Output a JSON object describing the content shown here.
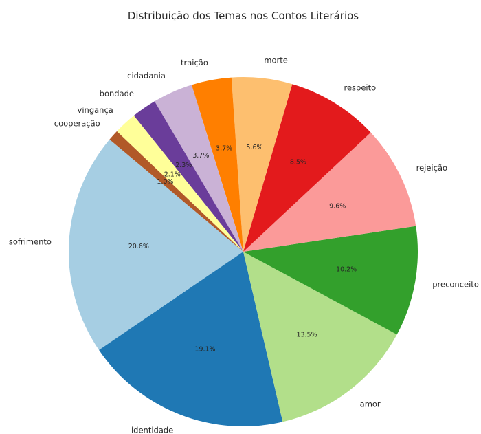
{
  "chart_data": {
    "type": "pie",
    "title": "Distribuição dos Temas nos Contos Literários",
    "slices": [
      {
        "label": "sofrimento",
        "value": 20.6,
        "pct_label": "20.6%",
        "color": "#a6cee3"
      },
      {
        "label": "identidade",
        "value": 19.1,
        "pct_label": "19.1%",
        "color": "#1f78b4"
      },
      {
        "label": "amor",
        "value": 13.5,
        "pct_label": "13.5%",
        "color": "#b2df8a"
      },
      {
        "label": "preconceito",
        "value": 10.2,
        "pct_label": "10.2%",
        "color": "#33a02c"
      },
      {
        "label": "rejeição",
        "value": 9.6,
        "pct_label": "9.6%",
        "color": "#fb9a99"
      },
      {
        "label": "respeito",
        "value": 8.5,
        "pct_label": "8.5%",
        "color": "#e31a1c"
      },
      {
        "label": "morte",
        "value": 5.6,
        "pct_label": "5.6%",
        "color": "#fdbf6f"
      },
      {
        "label": "traição",
        "value": 3.7,
        "pct_label": "3.7%",
        "color": "#ff7f00"
      },
      {
        "label": "cidadania",
        "value": 3.7,
        "pct_label": "3.7%",
        "color": "#cab2d6"
      },
      {
        "label": "bondade",
        "value": 2.3,
        "pct_label": "2.3%",
        "color": "#6a3d9a"
      },
      {
        "label": "vingança",
        "value": 2.1,
        "pct_label": "2.1%",
        "color": "#ffff99"
      },
      {
        "label": "cooperação",
        "value": 1.0,
        "pct_label": "1.0%",
        "color": "#b15928"
      }
    ],
    "start_angle_deg": 140,
    "direction": "counterclockwise",
    "legend": "none"
  }
}
